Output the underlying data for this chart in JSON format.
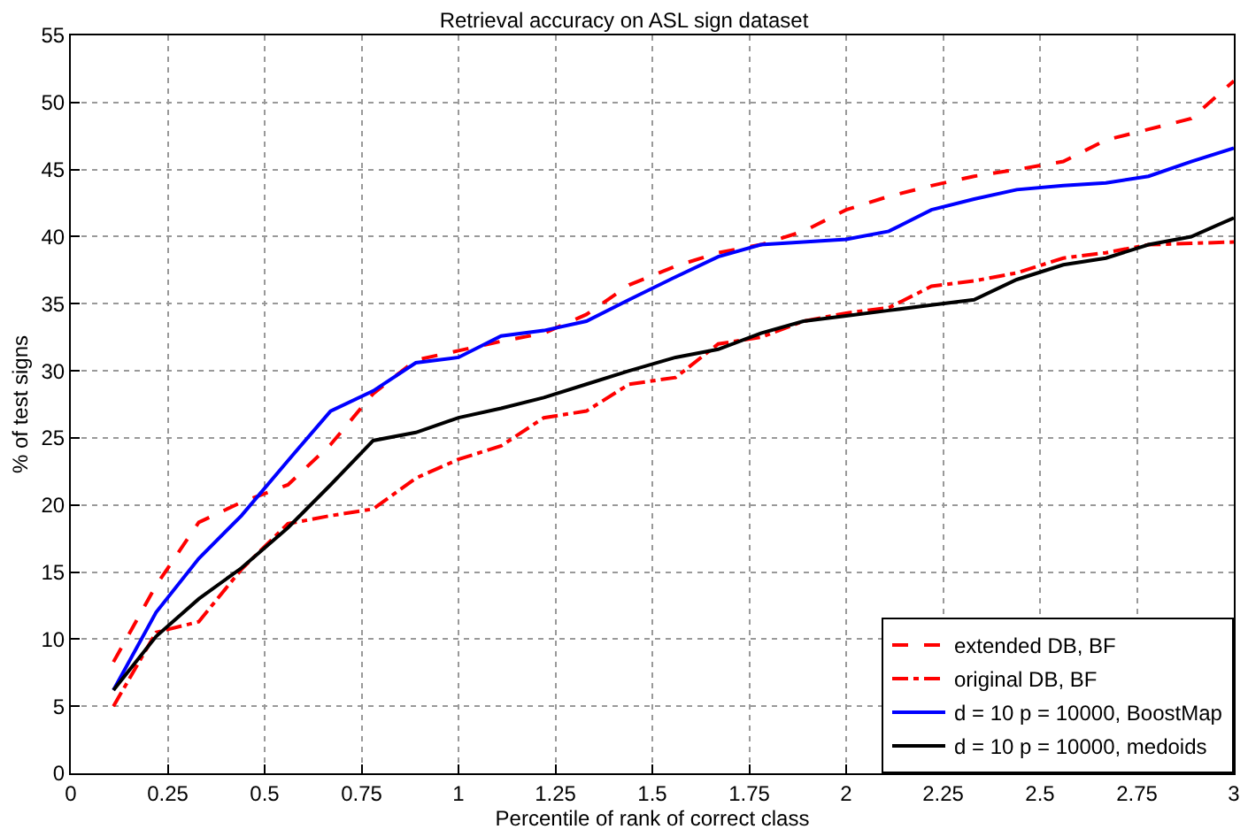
{
  "chart_data": {
    "type": "line",
    "title": "Retrieval accuracy on ASL sign dataset",
    "xlabel": "Percentile of rank of correct class",
    "ylabel": "% of test signs",
    "x": [
      0.11,
      0.22,
      0.33,
      0.44,
      0.56,
      0.67,
      0.78,
      0.89,
      1.0,
      1.11,
      1.22,
      1.33,
      1.44,
      1.56,
      1.67,
      1.78,
      1.89,
      2.0,
      2.11,
      2.22,
      2.33,
      2.44,
      2.56,
      2.67,
      2.78,
      2.89,
      3.0
    ],
    "series": [
      {
        "name": "extended DB, BF",
        "color": "#ff0000",
        "line_style": "dashed",
        "values": [
          8.3,
          14,
          18.7,
          20.2,
          21.5,
          24.5,
          28.3,
          30.8,
          31.5,
          32.2,
          32.8,
          34.2,
          36.4,
          37.8,
          38.8,
          39.4,
          40.4,
          42,
          43,
          43.8,
          44.5,
          45,
          45.6,
          47.2,
          48,
          48.8,
          51.6
        ]
      },
      {
        "name": "original DB, BF",
        "color": "#ff0000",
        "line_style": "dashdot",
        "values": [
          5,
          10.5,
          11.3,
          15.2,
          18.6,
          19.2,
          19.7,
          22,
          23.4,
          24.4,
          26.5,
          27,
          29,
          29.5,
          32,
          32.5,
          33.7,
          34.3,
          34.7,
          36.3,
          36.7,
          37.3,
          38.4,
          38.8,
          39.4,
          39.5,
          39.6
        ]
      },
      {
        "name": "d = 10 p = 10000, BoostMap",
        "color": "#0000ff",
        "line_style": "solid",
        "values": [
          6.2,
          12,
          16,
          19.2,
          23.3,
          27,
          28.5,
          30.6,
          31,
          32.6,
          33,
          33.7,
          35.3,
          37,
          38.5,
          39.4,
          39.6,
          39.8,
          40.4,
          42,
          42.8,
          43.5,
          43.8,
          44,
          44.5,
          45.6,
          46.6
        ]
      },
      {
        "name": "d = 10 p = 10000, medoids",
        "color": "#000000",
        "line_style": "solid",
        "values": [
          6.2,
          10.2,
          13,
          15.3,
          18.3,
          21.5,
          24.8,
          25.4,
          26.5,
          27.2,
          28,
          29,
          30,
          31,
          31.6,
          32.8,
          33.7,
          34.1,
          34.5,
          34.9,
          35.3,
          36.8,
          37.9,
          38.4,
          39.4,
          40,
          41.4
        ]
      }
    ],
    "xlim": [
      0,
      3
    ],
    "xticks": [
      0,
      0.25,
      0.5,
      0.75,
      1,
      1.25,
      1.5,
      1.75,
      2,
      2.25,
      2.5,
      2.75,
      3
    ],
    "ylim": [
      0,
      55
    ],
    "yticks": [
      0,
      5,
      10,
      15,
      20,
      25,
      30,
      35,
      40,
      45,
      50,
      55
    ],
    "grid": true,
    "legend": "bottom right",
    "marker": "none"
  }
}
